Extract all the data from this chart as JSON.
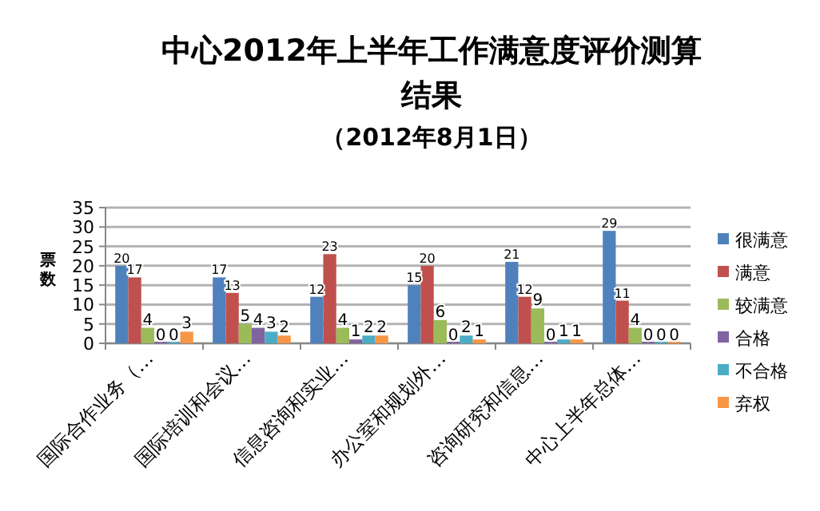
{
  "chart_data": {
    "type": "bar",
    "title": "中心2012年上半年工作满意度评价测算结果",
    "subtitle": "（2012年8月1日）",
    "ylabel": "票数",
    "categories": [
      "国际合作业务（…",
      "国际培训和会议…",
      "信息咨询和实业…",
      "办公室和规划外…",
      "咨询研究和信息…",
      "中心上半年总体…"
    ],
    "series": [
      {
        "name": "很满意",
        "color": "#4f81bd",
        "values": [
          20,
          17,
          12,
          15,
          21,
          29
        ]
      },
      {
        "name": "满意",
        "color": "#c0504d",
        "values": [
          17,
          13,
          23,
          20,
          12,
          11
        ]
      },
      {
        "name": "较满意",
        "color": "#9bbb59",
        "values": [
          4,
          5,
          4,
          6,
          9,
          4
        ]
      },
      {
        "name": "合格",
        "color": "#8064a2",
        "values": [
          0,
          4,
          1,
          0,
          0,
          0
        ]
      },
      {
        "name": "不合格",
        "color": "#4bacc6",
        "values": [
          0,
          3,
          2,
          2,
          1,
          0
        ]
      },
      {
        "name": "弃权",
        "color": "#f79646",
        "values": [
          3,
          2,
          2,
          1,
          1,
          0
        ]
      }
    ],
    "ylim": [
      0,
      35
    ],
    "yticks": [
      0,
      5,
      10,
      15,
      20,
      25,
      30,
      35
    ],
    "grid": "y",
    "legend": "right",
    "data_labels": true
  }
}
